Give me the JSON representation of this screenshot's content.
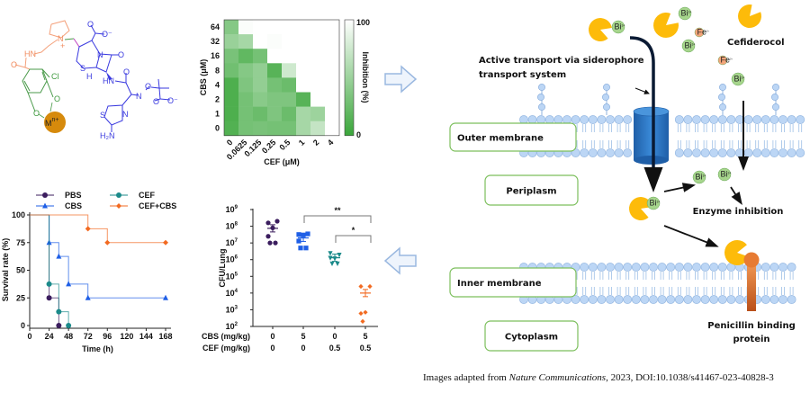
{
  "structure": {
    "atoms": [
      {
        "text": "HN",
        "color": "#f08a5d"
      },
      {
        "text": "O",
        "color": "#f08a5d"
      },
      {
        "text": "N",
        "color": "#f08a5d"
      },
      {
        "text": "+",
        "color": "#f08a5d"
      },
      {
        "text": "Cl",
        "color": "#3f9a3f"
      },
      {
        "text": "O",
        "color": "#3f9a3f"
      },
      {
        "text": "O",
        "color": "#3f9a3f"
      },
      {
        "text": "O",
        "color": "#3a3adf"
      },
      {
        "text": "O⁻",
        "color": "#3a3adf"
      },
      {
        "text": "N",
        "color": "#3a3adf"
      },
      {
        "text": "O",
        "color": "#3a3adf"
      },
      {
        "text": "S",
        "color": "#3a3adf"
      },
      {
        "text": "H",
        "color": "#3a3adf"
      },
      {
        "text": "HN",
        "color": "#3a3adf"
      },
      {
        "text": "O",
        "color": "#3a3adf"
      },
      {
        "text": "N",
        "color": "#3a3adf"
      },
      {
        "text": "O",
        "color": "#3a3adf"
      },
      {
        "text": "O",
        "color": "#3a3adf"
      },
      {
        "text": "O⁻",
        "color": "#3a3adf"
      },
      {
        "text": "S",
        "color": "#3a3adf"
      },
      {
        "text": "N",
        "color": "#3a3adf"
      },
      {
        "text": "H₂N",
        "color": "#3a3adf"
      }
    ],
    "metal": "M",
    "metal_charge": "n+",
    "metal_color": "#d68a0c"
  },
  "chart_data": [
    {
      "type": "heatmap",
      "xlabel": "CEF (μM)",
      "ylabel": "CBS (μM)",
      "x_categories": [
        "0",
        "0.0625",
        "0.125",
        "0.25",
        "0.5",
        "1",
        "2",
        "4"
      ],
      "y_categories": [
        "64",
        "32",
        "16",
        "8",
        "4",
        "2",
        "1",
        "0"
      ],
      "values": [
        [
          38,
          98,
          100,
          100,
          100,
          100,
          100,
          100
        ],
        [
          48,
          55,
          100,
          98,
          100,
          100,
          100,
          100
        ],
        [
          32,
          20,
          30,
          100,
          100,
          100,
          100,
          100
        ],
        [
          28,
          38,
          45,
          15,
          75,
          100,
          100,
          100
        ],
        [
          10,
          35,
          45,
          30,
          25,
          100,
          100,
          100
        ],
        [
          10,
          30,
          40,
          35,
          35,
          15,
          100,
          100
        ],
        [
          10,
          30,
          25,
          35,
          25,
          55,
          50,
          100
        ],
        [
          12,
          30,
          32,
          30,
          30,
          55,
          70,
          100
        ]
      ],
      "colorbar": {
        "label": "Inhibition (%)",
        "min": 0,
        "max": 100,
        "min_label": "0",
        "max_label": "100",
        "color_min": "#3aa63a",
        "color_max": "#ffffff"
      }
    },
    {
      "type": "line",
      "step": true,
      "xlabel": "Time (h)",
      "ylabel": "Survival rate (%)",
      "xlim": [
        0,
        168
      ],
      "ylim": [
        0,
        100
      ],
      "xticks": [
        0,
        24,
        48,
        72,
        96,
        120,
        144,
        168
      ],
      "yticks": [
        0,
        25,
        50,
        75,
        100
      ],
      "legend": "top",
      "series": [
        {
          "name": "PBS",
          "color": "#3b1d5e",
          "marker": "circle",
          "points": [
            [
              0,
              100
            ],
            [
              24,
              25
            ],
            [
              36,
              0
            ]
          ],
          "marked": [
            [
              24,
              25
            ],
            [
              36,
              0
            ]
          ]
        },
        {
          "name": "CBS",
          "color": "#1f5fe6",
          "marker": "triangle",
          "points": [
            [
              0,
              100
            ],
            [
              24,
              75
            ],
            [
              36,
              62.5
            ],
            [
              48,
              37.5
            ],
            [
              72,
              25
            ],
            [
              168,
              25
            ]
          ],
          "marked": [
            [
              24,
              75
            ],
            [
              36,
              62.5
            ],
            [
              48,
              37.5
            ],
            [
              72,
              25
            ],
            [
              168,
              25
            ]
          ]
        },
        {
          "name": "CEF",
          "color": "#1b8a8a",
          "marker": "circle",
          "points": [
            [
              0,
              100
            ],
            [
              24,
              37.5
            ],
            [
              36,
              12.5
            ],
            [
              48,
              0
            ]
          ],
          "marked": [
            [
              24,
              37.5
            ],
            [
              36,
              12.5
            ],
            [
              48,
              0
            ]
          ]
        },
        {
          "name": "CEF+CBS",
          "color": "#f26a21",
          "marker": "diamond",
          "points": [
            [
              0,
              100
            ],
            [
              72,
              87.5
            ],
            [
              96,
              75
            ],
            [
              168,
              75
            ]
          ],
          "marked": [
            [
              72,
              87.5
            ],
            [
              96,
              75
            ],
            [
              168,
              75
            ]
          ]
        }
      ]
    },
    {
      "type": "scatter",
      "ylabel": "CFU/Lung",
      "yscale": "log",
      "ylim": [
        100,
        1000000000
      ],
      "yticks": [
        100,
        1000,
        10000,
        100000,
        1000000,
        10000000,
        100000000,
        1000000000
      ],
      "row_labels": [
        "CBS (mg/kg)",
        "CEF (mg/kg)"
      ],
      "groups": [
        {
          "CBS": "0",
          "CEF": "0",
          "color": "#3b1d5e",
          "marker": "circle",
          "values": [
            160000000.0,
            200000000.0,
            80000000.0,
            25000000.0,
            10000000.0,
            10000000.0
          ],
          "mean": 75000000.0
        },
        {
          "CBS": "5",
          "CEF": "0",
          "color": "#1f5fe6",
          "marker": "square",
          "values": [
            32000000.0,
            35000000.0,
            30000000.0,
            13000000.0,
            5000000.0,
            5000000.0
          ],
          "mean": 20000000.0
        },
        {
          "CBS": "0",
          "CEF": "0.5",
          "color": "#1b8a8a",
          "marker": "triangle-down",
          "values": [
            2500000.0,
            2000000.0,
            1200000.0,
            1300000.0,
            600000.0,
            600000.0
          ],
          "mean": 1300000.0
        },
        {
          "CBS": "5",
          "CEF": "0.5",
          "color": "#f26a21",
          "marker": "diamond",
          "values": [
            25000.0,
            25000.0,
            700,
            600,
            200
          ],
          "mean": 10000.0
        }
      ],
      "significance": [
        {
          "from": 2,
          "to": 4,
          "label": "**"
        },
        {
          "from": 3,
          "to": 4,
          "label": "*"
        }
      ]
    }
  ],
  "diagram": {
    "transport_label_1": "Active transport via siderophore",
    "transport_label_2": "transport system",
    "drug_label": "Cefiderocol",
    "enzyme_label": "Enzyme inhibition",
    "pbp_label_1": "Penicillin binding",
    "pbp_label_2": "protein",
    "compartments": [
      "Outer membrane",
      "Periplasm",
      "Inner membrane",
      "Cytoplasm"
    ],
    "bi_ion": "Bi",
    "bi_charge": "3+",
    "fe_ion": "Fe",
    "fe_charge": "3+",
    "colors": {
      "drug": "#fdbb0a",
      "bi": "#a6d58c",
      "fe": "#f4a57a",
      "lipid": "#bcd6f5",
      "channel": "#2f78c4",
      "pbp": "#e77b33",
      "box_border": "#7cbf5c"
    }
  },
  "footer": {
    "prefix": "Images adapted from ",
    "journal": "Nature Communications",
    "suffix": ", 2023, DOI:10.1038/s41467-023-40828-3"
  }
}
